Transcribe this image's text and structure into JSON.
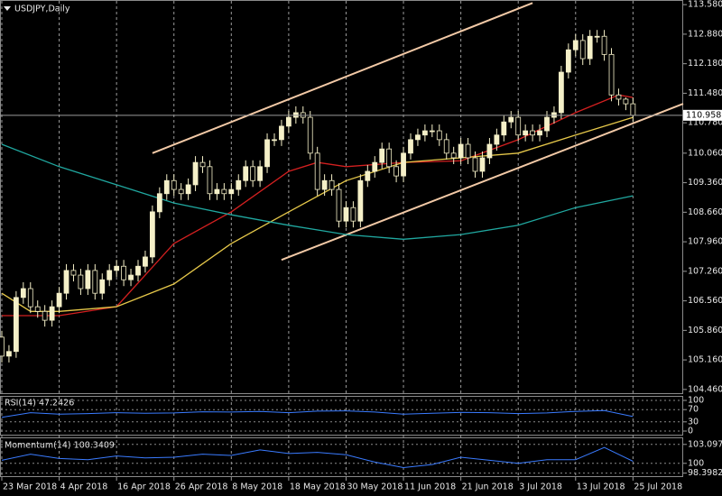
{
  "chart_data": [
    {
      "type": "candlestick",
      "title": "USDJPY,Daily",
      "xlim": [
        -0.25,
        95
      ],
      "xticks": [
        {
          "value": 0,
          "label": "23 Mar 2018"
        },
        {
          "value": 8,
          "label": "4 Apr 2018"
        },
        {
          "value": 16,
          "label": "16 Apr 2018"
        },
        {
          "value": 24,
          "label": "26 Apr 2018"
        },
        {
          "value": 32,
          "label": "8 May 2018"
        },
        {
          "value": 40,
          "label": "18 May 2018"
        },
        {
          "value": 48,
          "label": "30 May 2018"
        },
        {
          "value": 56,
          "label": "11 Jun 2018"
        },
        {
          "value": 64,
          "label": "21 Jun 2018"
        },
        {
          "value": 72,
          "label": "3 Jul 2018"
        },
        {
          "value": 80,
          "label": "13 Jul 2018"
        },
        {
          "value": 88,
          "label": "25 Jul 2018"
        }
      ],
      "ylim": [
        104.35,
        113.69
      ],
      "yticks": [
        {
          "value": 113.58,
          "label": "113.580"
        },
        {
          "value": 112.88,
          "label": "112.880"
        },
        {
          "value": 112.18,
          "label": "112.180"
        },
        {
          "value": 111.48,
          "label": "111.480"
        },
        {
          "value": 110.78,
          "label": "110.780"
        },
        {
          "value": 110.06,
          "label": "110.060"
        },
        {
          "value": 109.36,
          "label": "109.360"
        },
        {
          "value": 108.66,
          "label": "108.660"
        },
        {
          "value": 107.96,
          "label": "107.960"
        },
        {
          "value": 107.26,
          "label": "107.260"
        },
        {
          "value": 106.56,
          "label": "106.560"
        },
        {
          "value": 105.86,
          "label": "105.860"
        },
        {
          "value": 105.16,
          "label": "105.160"
        },
        {
          "value": 104.46,
          "label": "104.460"
        }
      ],
      "grid": "x",
      "price_line": 110.958,
      "bull_color": "#f5f0c8",
      "bear_color": "#000000",
      "candle_outline": "#f5f0c8",
      "open": [
        105.7,
        105.25,
        105.36,
        106.64,
        106.85,
        106.42,
        106.31,
        106.1,
        106.42,
        106.74,
        107.28,
        107.17,
        106.85,
        107.28,
        106.74,
        107.06,
        107.28,
        107.38,
        107.06,
        107.17,
        107.38,
        107.6,
        108.67,
        109.1,
        109.41,
        109.2,
        109.1,
        109.31,
        109.84,
        109.74,
        109.1,
        109.2,
        109.1,
        109.2,
        109.41,
        109.74,
        109.41,
        109.74,
        110.38,
        110.38,
        110.7,
        110.91,
        111.02,
        110.91,
        110.06,
        109.2,
        109.41,
        109.2,
        108.45,
        108.77,
        108.45,
        109.41,
        109.63,
        109.84,
        110.16,
        109.74,
        109.52,
        110.06,
        110.38,
        110.49,
        110.59,
        110.59,
        110.38,
        110.06,
        109.95,
        110.27,
        109.95,
        109.63,
        109.95,
        110.27,
        110.49,
        110.8,
        110.91,
        110.49,
        110.59,
        110.49,
        110.59,
        110.91,
        111.02,
        111.98,
        112.51,
        112.73,
        112.3,
        112.83,
        112.83,
        112.4,
        111.44,
        111.34,
        111.23
      ],
      "high": [
        105.85,
        105.51,
        106.79,
        107.0,
        107.0,
        106.57,
        106.46,
        106.57,
        106.89,
        107.43,
        107.43,
        107.32,
        107.43,
        107.43,
        107.21,
        107.43,
        107.53,
        107.53,
        107.32,
        107.53,
        107.75,
        108.82,
        109.25,
        109.56,
        109.56,
        109.35,
        109.46,
        109.99,
        109.99,
        109.89,
        109.35,
        109.35,
        109.35,
        109.56,
        109.89,
        109.89,
        109.89,
        110.53,
        110.53,
        110.85,
        111.06,
        111.17,
        111.17,
        111.06,
        110.21,
        109.56,
        109.56,
        109.35,
        108.92,
        108.92,
        109.56,
        109.78,
        109.99,
        110.31,
        110.31,
        109.89,
        110.21,
        110.53,
        110.64,
        110.74,
        110.74,
        110.74,
        110.53,
        110.21,
        110.42,
        110.42,
        110.1,
        110.1,
        110.42,
        110.64,
        110.95,
        111.06,
        111.06,
        110.74,
        110.74,
        110.74,
        111.06,
        111.17,
        112.13,
        112.66,
        112.88,
        112.88,
        112.98,
        112.98,
        112.98,
        112.55,
        111.59,
        111.38,
        111.38
      ],
      "low": [
        105.1,
        105.1,
        105.21,
        106.49,
        106.27,
        106.16,
        105.95,
        105.95,
        106.27,
        106.59,
        107.02,
        106.7,
        106.7,
        106.59,
        106.59,
        106.91,
        107.13,
        106.91,
        106.91,
        107.02,
        107.23,
        107.45,
        108.52,
        108.95,
        109.05,
        108.95,
        108.95,
        109.16,
        109.59,
        108.95,
        108.95,
        108.95,
        108.95,
        109.05,
        109.26,
        109.26,
        109.26,
        109.59,
        110.23,
        110.23,
        110.55,
        110.76,
        110.76,
        109.91,
        109.05,
        109.05,
        109.05,
        108.3,
        108.3,
        108.3,
        108.3,
        109.26,
        109.48,
        109.69,
        109.59,
        109.37,
        109.37,
        109.91,
        110.23,
        110.34,
        110.44,
        110.23,
        109.91,
        109.8,
        109.8,
        109.8,
        109.48,
        109.48,
        109.8,
        110.12,
        110.34,
        110.65,
        110.34,
        110.34,
        110.34,
        110.34,
        110.44,
        110.76,
        110.87,
        111.83,
        112.36,
        112.15,
        112.15,
        112.68,
        112.25,
        111.29,
        111.19,
        111.08,
        110.81
      ],
      "close": [
        105.25,
        105.36,
        106.64,
        106.85,
        106.42,
        106.31,
        106.1,
        106.42,
        106.74,
        107.28,
        107.17,
        106.85,
        107.28,
        106.74,
        107.06,
        107.28,
        107.38,
        107.06,
        107.17,
        107.38,
        107.6,
        108.67,
        109.1,
        109.41,
        109.2,
        109.1,
        109.31,
        109.84,
        109.74,
        109.1,
        109.2,
        109.1,
        109.2,
        109.41,
        109.74,
        109.41,
        109.74,
        110.38,
        110.38,
        110.7,
        110.91,
        111.02,
        110.91,
        110.06,
        109.2,
        109.41,
        109.2,
        108.45,
        108.77,
        108.45,
        109.41,
        109.63,
        109.84,
        110.16,
        109.74,
        109.52,
        110.06,
        110.38,
        110.49,
        110.59,
        110.59,
        110.38,
        110.06,
        109.95,
        110.27,
        109.95,
        109.63,
        109.95,
        110.27,
        110.49,
        110.8,
        110.91,
        110.49,
        110.59,
        110.49,
        110.59,
        110.91,
        111.02,
        111.98,
        112.51,
        112.73,
        112.3,
        112.83,
        112.83,
        112.4,
        111.44,
        111.34,
        111.23,
        110.958
      ],
      "series": [
        {
          "color": "#d42020",
          "x": [
            0,
            8,
            16,
            24,
            32,
            40,
            44,
            48,
            56,
            64,
            72,
            80,
            86,
            88
          ],
          "values": [
            106.21,
            106.21,
            106.42,
            107.92,
            108.67,
            109.63,
            109.84,
            109.74,
            109.84,
            109.88,
            110.38,
            111.02,
            111.44,
            111.38
          ]
        },
        {
          "color": "#e6c84a",
          "x": [
            0,
            4,
            8,
            16,
            24,
            32,
            40,
            48,
            56,
            64,
            72,
            80,
            88
          ],
          "values": [
            106.74,
            106.31,
            106.31,
            106.42,
            106.96,
            107.92,
            108.67,
            109.41,
            109.84,
            109.95,
            110.06,
            110.49,
            110.91
          ]
        },
        {
          "color": "#20a8a0",
          "x": [
            0,
            8,
            16,
            24,
            32,
            40,
            48,
            56,
            64,
            72,
            80,
            88
          ],
          "values": [
            110.27,
            109.74,
            109.31,
            108.88,
            108.6,
            108.35,
            108.13,
            108.02,
            108.13,
            108.35,
            108.77,
            109.05
          ]
        }
      ],
      "trendlines": [
        {
          "color": "#f2c9a6",
          "x": [
            21,
            74
          ],
          "values": [
            110.06,
            113.62
          ]
        },
        {
          "color": "#f2c9a6",
          "x": [
            39,
            95
          ],
          "values": [
            107.53,
            111.23
          ]
        }
      ]
    },
    {
      "type": "line",
      "title": "RSI(14) 47.2426",
      "xlim": [
        -0.25,
        95
      ],
      "ylim": [
        0,
        100
      ],
      "yticks": [
        100,
        70,
        30,
        0
      ],
      "grid": true,
      "series": [
        {
          "color": "#3a7bff",
          "x": [
            0,
            4,
            8,
            12,
            16,
            20,
            24,
            28,
            32,
            36,
            40,
            44,
            48,
            52,
            56,
            60,
            64,
            68,
            72,
            76,
            80,
            84,
            88
          ],
          "values": [
            45,
            60,
            55,
            57,
            60,
            58,
            59,
            63,
            62,
            64,
            60,
            65,
            66,
            62,
            55,
            58,
            61,
            60,
            57,
            59,
            64,
            67,
            47.2426
          ]
        }
      ]
    },
    {
      "type": "line",
      "title": "Momentum(14) 100.3409",
      "xlim": [
        -0.25,
        95
      ],
      "ylim": [
        97.9,
        104.1
      ],
      "yticks": [
        103.0975,
        100,
        98.3982
      ],
      "grid": true,
      "series": [
        {
          "color": "#3a7bff",
          "x": [
            0,
            4,
            8,
            12,
            16,
            20,
            24,
            28,
            32,
            36,
            40,
            44,
            48,
            52,
            56,
            60,
            64,
            68,
            72,
            76,
            80,
            84,
            88
          ],
          "values": [
            100.5,
            101.5,
            100.8,
            100.6,
            101.2,
            100.9,
            101.0,
            101.5,
            101.3,
            102.2,
            101.6,
            101.8,
            101.4,
            100.2,
            99.3,
            99.8,
            101.0,
            100.5,
            100.0,
            100.6,
            100.6,
            102.6,
            100.3409
          ]
        }
      ]
    }
  ]
}
